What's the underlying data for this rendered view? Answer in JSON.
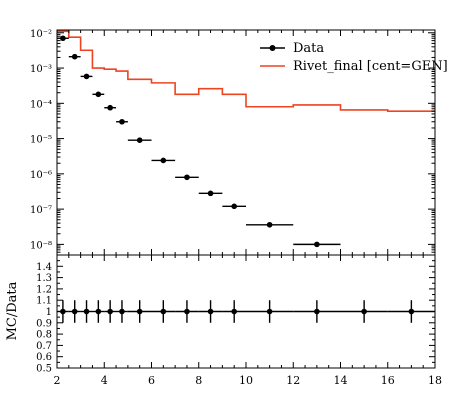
{
  "chart_data": [
    {
      "type": "scatter",
      "panel": "main",
      "title": "",
      "xlabel": "",
      "ylabel": "",
      "xlim": [
        2,
        18
      ],
      "ylim": [
        5e-09,
        0.012
      ],
      "yscale": "log",
      "grid": false,
      "legend": "top-right",
      "legend_entries": [
        "Data",
        "Rivet_final [cent=GEN]"
      ],
      "series": [
        {
          "name": "Data",
          "kind": "points-with-errors",
          "color": "#000000",
          "x": [
            2.25,
            2.75,
            3.25,
            3.75,
            4.25,
            4.75,
            5.5,
            6.5,
            7.5,
            8.5,
            9.5,
            11,
            13
          ],
          "x_low": [
            2.0,
            2.5,
            3.0,
            3.5,
            4.0,
            4.5,
            5.0,
            6.0,
            7.0,
            8.0,
            9.0,
            10.0,
            12.0
          ],
          "x_high": [
            2.5,
            3.0,
            3.5,
            4.0,
            4.5,
            5.0,
            6.0,
            7.0,
            8.0,
            9.0,
            10.0,
            12.0,
            14.0
          ],
          "y": [
            0.007,
            0.0021,
            0.00058,
            0.00018,
            7.5e-05,
            3e-05,
            9e-06,
            2.4e-06,
            8e-07,
            2.8e-07,
            1.2e-07,
            3.6e-08,
            1e-08
          ]
        },
        {
          "name": "Rivet_final [cent=GEN]",
          "kind": "step",
          "color": "#ee4422",
          "edges": [
            2.0,
            2.5,
            3.0,
            3.5,
            4.0,
            4.5,
            5.0,
            6.0,
            7.0,
            8.0,
            9.0,
            10.0,
            12.0,
            14.0,
            16.0,
            18.0
          ],
          "values": [
            0.011,
            0.0075,
            0.0032,
            0.001,
            0.00093,
            0.00082,
            0.00048,
            0.00038,
            0.00018,
            0.00026,
            0.00018,
            8e-05,
            9e-05,
            6.5e-05,
            6e-05
          ]
        }
      ],
      "x_ticks": [
        2,
        4,
        6,
        8,
        10,
        12,
        14,
        16,
        18
      ],
      "y_ticks": [
        {
          "value": 1e-08,
          "label": "10⁻⁸"
        },
        {
          "value": 1e-07,
          "label": "10⁻⁷"
        },
        {
          "value": 1e-06,
          "label": "10⁻⁶"
        },
        {
          "value": 1e-05,
          "label": "10⁻⁵"
        },
        {
          "value": 0.0001,
          "label": "10⁻⁴"
        },
        {
          "value": 0.001,
          "label": "10⁻³"
        },
        {
          "value": 0.01,
          "label": "10⁻²"
        }
      ]
    },
    {
      "type": "scatter",
      "panel": "ratio",
      "xlabel": "",
      "ylabel": "MC/Data",
      "xlim": [
        2,
        18
      ],
      "ylim": [
        0.5,
        1.5
      ],
      "grid": false,
      "series": [
        {
          "name": "",
          "kind": "points-with-errors",
          "color": "#000000",
          "x": [
            2.25,
            2.75,
            3.25,
            3.75,
            4.25,
            4.75,
            5.5,
            6.5,
            7.5,
            8.5,
            9.5,
            11,
            13,
            15,
            17
          ],
          "x_low": [
            2.0,
            2.5,
            3.0,
            3.5,
            4.0,
            4.5,
            5.0,
            6.0,
            7.0,
            8.0,
            9.0,
            10.0,
            12.0,
            14.0,
            16.0
          ],
          "x_high": [
            2.5,
            3.0,
            3.5,
            4.0,
            4.5,
            5.0,
            6.0,
            7.0,
            8.0,
            9.0,
            10.0,
            12.0,
            14.0,
            16.0,
            18.0
          ],
          "y": [
            1,
            1,
            1,
            1,
            1,
            1,
            1,
            1,
            1,
            1,
            1,
            1,
            1,
            1,
            1
          ],
          "y_err": [
            0.1,
            0.1,
            0.1,
            0.1,
            0.1,
            0.1,
            0.1,
            0.1,
            0.1,
            0.1,
            0.1,
            0.1,
            0.1,
            0.1,
            0.1
          ]
        }
      ],
      "x_ticks": [
        2,
        4,
        6,
        8,
        10,
        12,
        14,
        16,
        18
      ],
      "y_ticks": [
        "0.5",
        "0.6",
        "0.7",
        "0.8",
        "0.9",
        "1",
        "1.1",
        "1.2",
        "1.3",
        "1.4"
      ]
    }
  ]
}
